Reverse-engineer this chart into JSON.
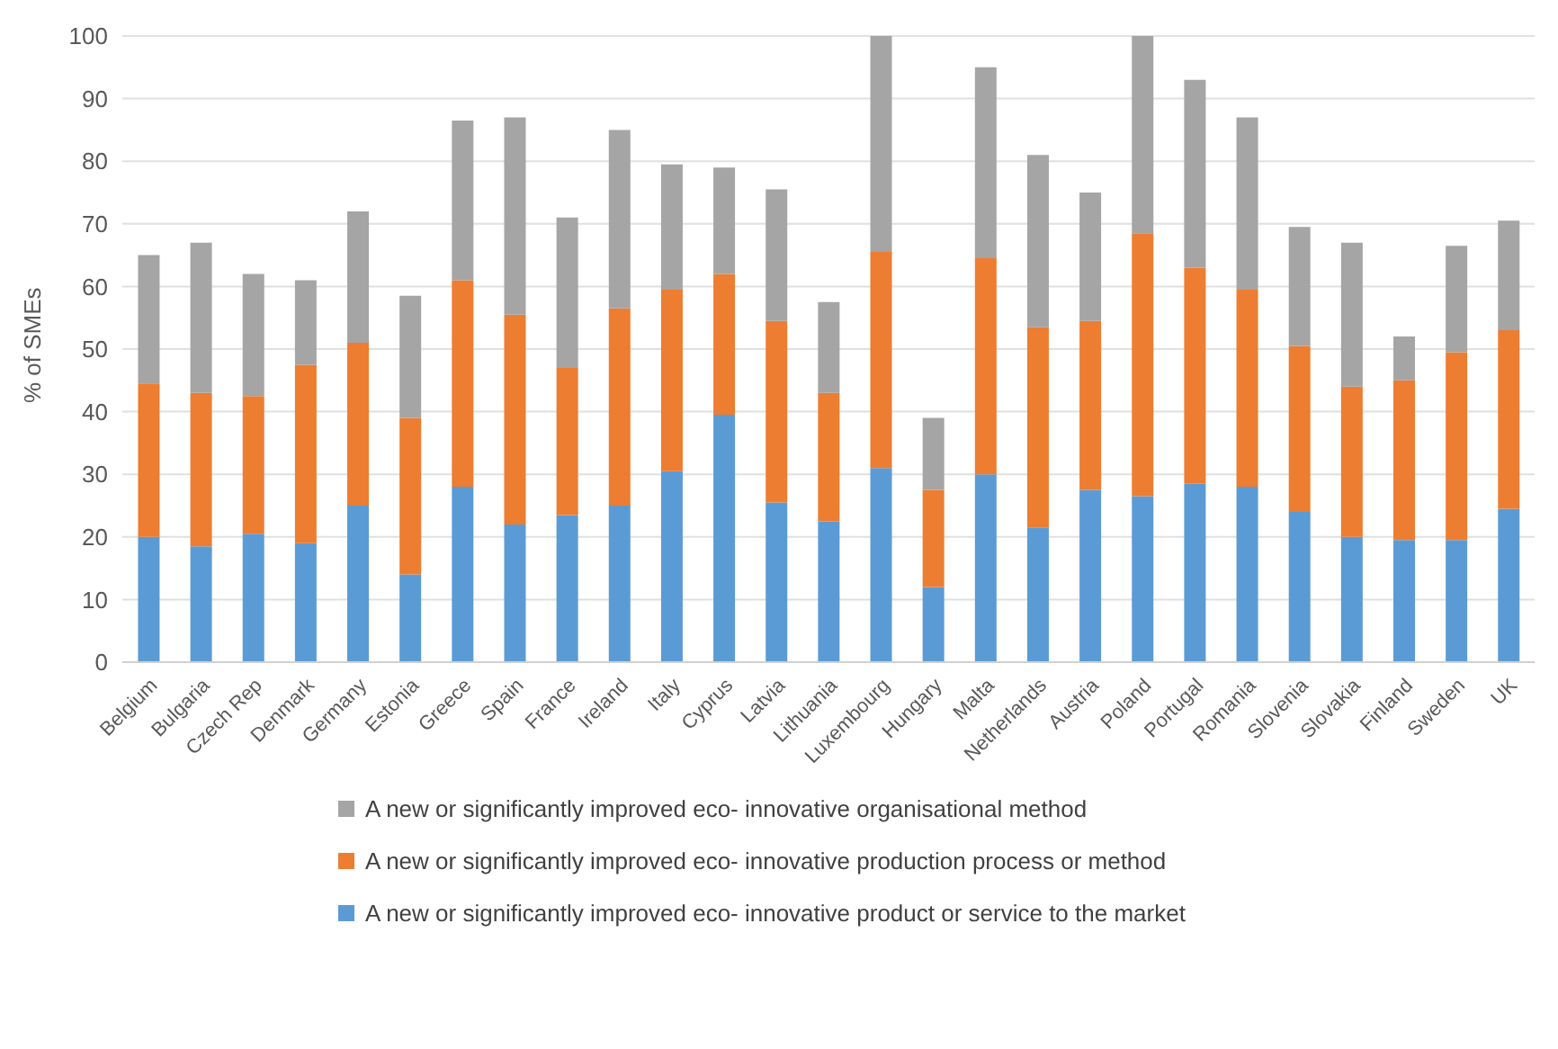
{
  "chart_data": {
    "type": "bar",
    "stacked": true,
    "ylabel": "% of SMEs",
    "categories": [
      "Belgium",
      "Bulgaria",
      "Czech Rep",
      "Denmark",
      "Germany",
      "Estonia",
      "Greece",
      "Spain",
      "France",
      "Ireland",
      "Italy",
      "Cyprus",
      "Latvia",
      "Lithuania",
      "Luxembourg",
      "Hungary",
      "Malta",
      "Netherlands",
      "Austria",
      "Poland",
      "Portugal",
      "Romania",
      "Slovenia",
      "Slovakia",
      "Finland",
      "Sweden",
      "UK"
    ],
    "series": [
      {
        "name": "A new or significantly improved eco- innovative product or service to the market",
        "color": "#5b9bd5",
        "values": [
          20,
          18.5,
          20.5,
          19,
          25,
          14,
          28,
          22,
          23.5,
          25,
          30.5,
          39.5,
          25.5,
          22.5,
          31,
          12,
          30,
          21.5,
          27.5,
          26.5,
          28.5,
          28,
          24,
          20,
          19.5,
          19.5,
          24.5
        ]
      },
      {
        "name": "A new or significantly improved eco- innovative production process or method",
        "color": "#ed7d31",
        "values": [
          24.5,
          24.5,
          22,
          28.5,
          26,
          25,
          33,
          33.5,
          23.5,
          31.5,
          29,
          22.5,
          29,
          20.5,
          34.5,
          15.5,
          34.5,
          32,
          27,
          42,
          34.5,
          31.5,
          26.5,
          24,
          25.5,
          30,
          28.5
        ]
      },
      {
        "name": "A new or significantly improved eco- innovative organisational method",
        "color": "#a5a5a5",
        "values": [
          20.5,
          24,
          19.5,
          13.5,
          21,
          19.5,
          25.5,
          31.5,
          24,
          28.5,
          20,
          17,
          21,
          14.5,
          34.5,
          11.5,
          30.5,
          27.5,
          20.5,
          31.5,
          30,
          27.5,
          19,
          23,
          7,
          17,
          17.5
        ]
      }
    ],
    "ylim": [
      0,
      100
    ],
    "yticks": [
      0,
      10,
      20,
      30,
      40,
      50,
      60,
      70,
      80,
      90,
      100
    ],
    "grid": "y",
    "legend": "bottom"
  }
}
